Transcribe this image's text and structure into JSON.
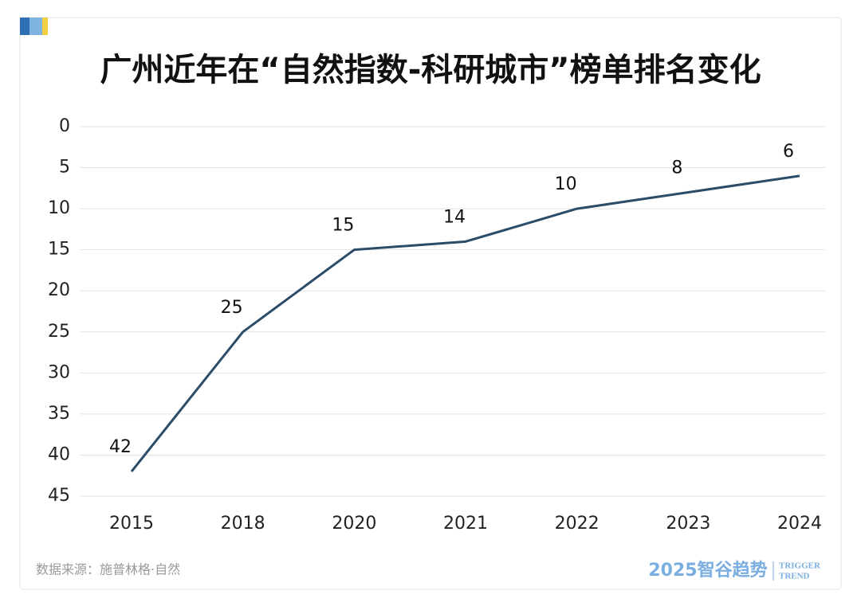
{
  "chart_data": {
    "type": "line",
    "title": "广州近年在“自然指数-科研城市”榜单排名变化",
    "categories": [
      "2015",
      "2018",
      "2020",
      "2021",
      "2022",
      "2023",
      "2024"
    ],
    "series": [
      {
        "name": "排名",
        "color": "#2b4c68",
        "values": [
          42,
          25,
          15,
          14,
          10,
          8,
          6
        ]
      }
    ],
    "ylim": [
      0,
      45
    ],
    "yticks": [
      0,
      5,
      10,
      15,
      20,
      25,
      30,
      35,
      40,
      45
    ],
    "y_reversed": true,
    "grid": true,
    "show_legend": false
  },
  "footer": {
    "source": "数据来源：施普林格·自然",
    "logo": "2025智谷趋势",
    "logo_en_1": "TRIGGER",
    "logo_en_2": "TREND"
  }
}
